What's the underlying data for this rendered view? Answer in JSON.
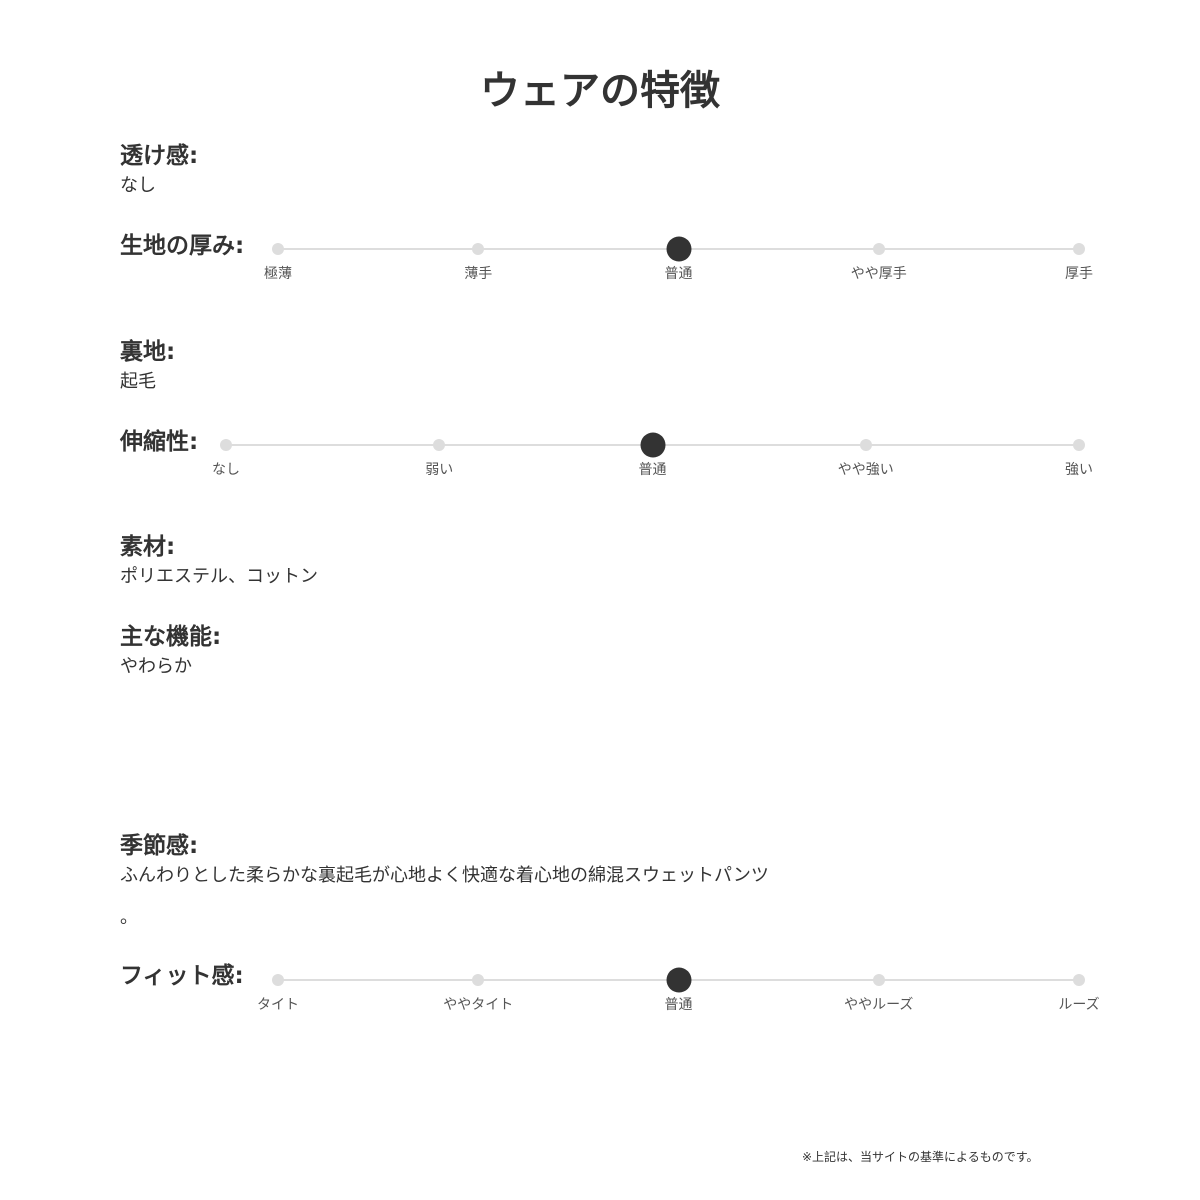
{
  "title": "ウェアの特徴",
  "sections": {
    "transparency": {
      "label": "透け感:",
      "value": "なし"
    },
    "thickness": {
      "label": "生地の厚み:",
      "options": [
        "極薄",
        "薄手",
        "普通",
        "やや厚手",
        "厚手"
      ],
      "selected": 2
    },
    "lining": {
      "label": "裏地:",
      "value": "起毛"
    },
    "stretch": {
      "label": "伸縮性:",
      "options": [
        "なし",
        "弱い",
        "普通",
        "やや強い",
        "強い"
      ],
      "selected": 2
    },
    "material": {
      "label": "素材:",
      "value": "ポリエステル、コットン"
    },
    "function": {
      "label": "主な機能:",
      "value": "やわらか"
    },
    "season": {
      "label": "季節感:",
      "value": "ふんわりとした柔らかな裏起毛が心地よく快適な着心地の綿混スウェットパンツ",
      "value2": "。"
    },
    "fit": {
      "label": "フィット感:",
      "options": [
        "タイト",
        "ややタイト",
        "普通",
        "ややルーズ",
        "ルーズ"
      ],
      "selected": 2
    }
  },
  "note": "※上記は、当サイトの基準によるものです。",
  "colors": {
    "active": "#333333",
    "inactive": "#dddddd"
  }
}
